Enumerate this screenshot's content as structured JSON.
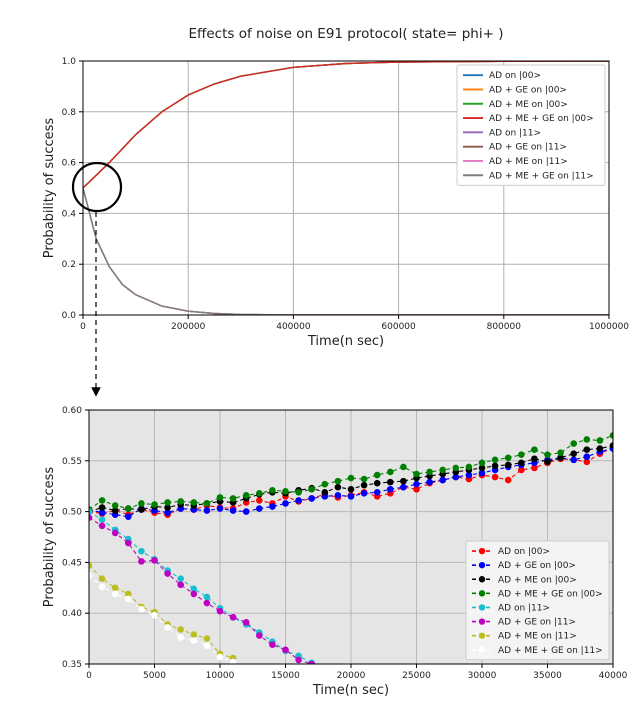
{
  "chart_data": [
    {
      "type": "line",
      "title": "Effects of noise on E91 protocol( state= phi+ )",
      "xlabel": "Time(n sec)",
      "ylabel": "Probability of success",
      "xlim": [
        0,
        1000000
      ],
      "ylim": [
        0.0,
        1.0
      ],
      "xticks": [
        "0",
        "200000",
        "400000",
        "600000",
        "800000",
        "1000000"
      ],
      "yticks": [
        "0.0",
        "0.2",
        "0.4",
        "0.6",
        "0.8",
        "1.0"
      ],
      "grid": true,
      "legend_position": "top-right",
      "series": [
        {
          "name": "AD on |00>",
          "color": "#1f77b4",
          "x": [
            0,
            50000,
            100000,
            150000,
            200000,
            250000,
            300000,
            400000,
            500000,
            600000,
            800000,
            1000000
          ],
          "y": [
            0.5,
            0.6,
            0.71,
            0.8,
            0.866,
            0.91,
            0.94,
            0.975,
            0.99,
            0.996,
            0.999,
            1.0
          ]
        },
        {
          "name": "AD + GE on |00>",
          "color": "#ff7f0e",
          "x": [
            0,
            50000,
            100000,
            150000,
            200000,
            250000,
            300000,
            400000,
            500000,
            600000,
            800000,
            1000000
          ],
          "y": [
            0.5,
            0.6,
            0.71,
            0.8,
            0.866,
            0.91,
            0.94,
            0.975,
            0.99,
            0.996,
            0.999,
            1.0
          ]
        },
        {
          "name": "AD + ME on |00>",
          "color": "#2ca02c",
          "x": [
            0,
            50000,
            100000,
            150000,
            200000,
            250000,
            300000,
            400000,
            500000,
            600000,
            800000,
            1000000
          ],
          "y": [
            0.5,
            0.6,
            0.71,
            0.8,
            0.866,
            0.91,
            0.94,
            0.975,
            0.99,
            0.996,
            0.999,
            1.0
          ]
        },
        {
          "name": "AD + ME + GE on |00>",
          "color": "#d62728",
          "x": [
            0,
            50000,
            100000,
            150000,
            200000,
            250000,
            300000,
            400000,
            500000,
            600000,
            800000,
            1000000
          ],
          "y": [
            0.5,
            0.6,
            0.71,
            0.8,
            0.866,
            0.91,
            0.94,
            0.975,
            0.99,
            0.996,
            0.999,
            1.0
          ]
        },
        {
          "name": "AD on |11>",
          "color": "#9467bd",
          "x": [
            0,
            25000,
            50000,
            75000,
            100000,
            150000,
            200000,
            250000,
            300000,
            400000,
            600000,
            1000000
          ],
          "y": [
            0.5,
            0.3,
            0.19,
            0.12,
            0.08,
            0.035,
            0.015,
            0.006,
            0.002,
            0.0,
            0.0,
            0.0
          ]
        },
        {
          "name": "AD + GE on |11>",
          "color": "#8c564b",
          "x": [
            0,
            25000,
            50000,
            75000,
            100000,
            150000,
            200000,
            250000,
            300000,
            400000,
            600000,
            1000000
          ],
          "y": [
            0.5,
            0.3,
            0.19,
            0.12,
            0.08,
            0.035,
            0.015,
            0.006,
            0.002,
            0.0,
            0.0,
            0.0
          ]
        },
        {
          "name": "AD + ME on |11>",
          "color": "#e377c2",
          "x": [
            0,
            25000,
            50000,
            75000,
            100000,
            150000,
            200000,
            250000,
            300000,
            400000,
            600000,
            1000000
          ],
          "y": [
            0.5,
            0.3,
            0.19,
            0.12,
            0.08,
            0.035,
            0.015,
            0.006,
            0.002,
            0.0,
            0.0,
            0.0
          ]
        },
        {
          "name": "AD + ME + GE on |11>",
          "color": "#7f7f7f",
          "x": [
            0,
            25000,
            50000,
            75000,
            100000,
            150000,
            200000,
            250000,
            300000,
            400000,
            600000,
            1000000
          ],
          "y": [
            0.5,
            0.3,
            0.19,
            0.12,
            0.08,
            0.035,
            0.015,
            0.006,
            0.002,
            0.0,
            0.0,
            0.0
          ]
        }
      ]
    },
    {
      "type": "line",
      "title": "",
      "xlabel": "Time(n sec)",
      "ylabel": "Probability of success",
      "xlim": [
        0,
        40000
      ],
      "ylim": [
        0.35,
        0.6
      ],
      "xticks": [
        "0",
        "5000",
        "10000",
        "15000",
        "20000",
        "25000",
        "30000",
        "35000",
        "40000"
      ],
      "yticks": [
        "0.35",
        "0.40",
        "0.45",
        "0.50",
        "0.55",
        "0.60"
      ],
      "grid": true,
      "background": "#e5e5e5",
      "legend_position": "bottom-right",
      "series": [
        {
          "name": "AD on |00>",
          "color": "#ff0000",
          "x": [
            0,
            1000,
            2000,
            3000,
            4000,
            5000,
            6000,
            7000,
            8000,
            9000,
            10000,
            11000,
            12000,
            13000,
            14000,
            15000,
            16000,
            17000,
            18000,
            19000,
            20000,
            21000,
            22000,
            23000,
            24000,
            25000,
            26000,
            27000,
            28000,
            29000,
            30000,
            31000,
            32000,
            33000,
            34000,
            35000,
            36000,
            37000,
            38000,
            39000,
            40000
          ],
          "y": [
            0.5,
            0.498,
            0.501,
            0.497,
            0.502,
            0.499,
            0.497,
            0.503,
            0.502,
            0.506,
            0.504,
            0.503,
            0.509,
            0.511,
            0.508,
            0.515,
            0.51,
            0.513,
            0.517,
            0.514,
            0.516,
            0.519,
            0.515,
            0.518,
            0.524,
            0.522,
            0.528,
            0.531,
            0.534,
            0.532,
            0.536,
            0.534,
            0.531,
            0.541,
            0.543,
            0.548,
            0.552,
            0.551,
            0.549,
            0.557,
            0.563
          ]
        },
        {
          "name": "AD + GE on |00>",
          "color": "#0000ff",
          "x": [
            0,
            1000,
            2000,
            3000,
            4000,
            5000,
            6000,
            7000,
            8000,
            9000,
            10000,
            11000,
            12000,
            13000,
            14000,
            15000,
            16000,
            17000,
            18000,
            19000,
            20000,
            21000,
            22000,
            23000,
            24000,
            25000,
            26000,
            27000,
            28000,
            29000,
            30000,
            31000,
            32000,
            33000,
            34000,
            35000,
            36000,
            37000,
            38000,
            39000,
            40000
          ],
          "y": [
            0.502,
            0.499,
            0.497,
            0.495,
            0.503,
            0.501,
            0.499,
            0.503,
            0.502,
            0.501,
            0.503,
            0.501,
            0.5,
            0.503,
            0.505,
            0.508,
            0.511,
            0.513,
            0.515,
            0.516,
            0.515,
            0.518,
            0.519,
            0.522,
            0.524,
            0.527,
            0.529,
            0.531,
            0.534,
            0.536,
            0.538,
            0.541,
            0.544,
            0.546,
            0.548,
            0.551,
            0.553,
            0.551,
            0.554,
            0.559,
            0.562
          ]
        },
        {
          "name": "AD + ME on |00>",
          "color": "#000000",
          "x": [
            0,
            1000,
            2000,
            3000,
            4000,
            5000,
            6000,
            7000,
            8000,
            9000,
            10000,
            11000,
            12000,
            13000,
            14000,
            15000,
            16000,
            17000,
            18000,
            19000,
            20000,
            21000,
            22000,
            23000,
            24000,
            25000,
            26000,
            27000,
            28000,
            29000,
            30000,
            31000,
            32000,
            33000,
            34000,
            35000,
            36000,
            37000,
            38000,
            39000,
            40000
          ],
          "y": [
            0.5,
            0.504,
            0.501,
            0.503,
            0.502,
            0.505,
            0.504,
            0.507,
            0.506,
            0.508,
            0.51,
            0.509,
            0.513,
            0.517,
            0.519,
            0.518,
            0.521,
            0.523,
            0.519,
            0.524,
            0.522,
            0.526,
            0.528,
            0.529,
            0.53,
            0.533,
            0.535,
            0.537,
            0.539,
            0.541,
            0.543,
            0.545,
            0.546,
            0.548,
            0.552,
            0.549,
            0.553,
            0.557,
            0.561,
            0.562,
            0.565
          ]
        },
        {
          "name": "AD + ME + GE on |00>",
          "color": "#008000",
          "x": [
            0,
            1000,
            2000,
            3000,
            4000,
            5000,
            6000,
            7000,
            8000,
            9000,
            10000,
            11000,
            12000,
            13000,
            14000,
            15000,
            16000,
            17000,
            18000,
            19000,
            20000,
            21000,
            22000,
            23000,
            24000,
            25000,
            26000,
            27000,
            28000,
            29000,
            30000,
            31000,
            32000,
            33000,
            34000,
            35000,
            36000,
            37000,
            38000,
            39000,
            40000
          ],
          "y": [
            0.502,
            0.511,
            0.506,
            0.503,
            0.508,
            0.507,
            0.509,
            0.51,
            0.509,
            0.508,
            0.514,
            0.513,
            0.516,
            0.518,
            0.521,
            0.52,
            0.519,
            0.522,
            0.527,
            0.53,
            0.533,
            0.532,
            0.536,
            0.539,
            0.544,
            0.537,
            0.539,
            0.541,
            0.543,
            0.544,
            0.548,
            0.551,
            0.553,
            0.556,
            0.561,
            0.556,
            0.558,
            0.567,
            0.571,
            0.57,
            0.575
          ]
        },
        {
          "name": "AD on |11>",
          "color": "#17becf",
          "x": [
            0,
            1000,
            2000,
            3000,
            4000,
            5000,
            6000,
            7000,
            8000,
            9000,
            10000,
            11000,
            12000,
            13000,
            14000,
            15000,
            16000,
            17000
          ],
          "y": [
            0.5,
            0.492,
            0.482,
            0.473,
            0.461,
            0.453,
            0.442,
            0.434,
            0.424,
            0.416,
            0.405,
            0.396,
            0.389,
            0.381,
            0.372,
            0.363,
            0.358,
            0.351
          ]
        },
        {
          "name": "AD + GE on |11>",
          "color": "#c000c0",
          "x": [
            0,
            1000,
            2000,
            3000,
            4000,
            5000,
            6000,
            7000,
            8000,
            9000,
            10000,
            11000,
            12000,
            13000,
            14000,
            15000,
            16000,
            17000
          ],
          "y": [
            0.494,
            0.486,
            0.479,
            0.469,
            0.451,
            0.452,
            0.439,
            0.428,
            0.419,
            0.41,
            0.402,
            0.396,
            0.391,
            0.378,
            0.369,
            0.364,
            0.354,
            0.35
          ]
        },
        {
          "name": "AD + ME on |11>",
          "color": "#bcbd22",
          "x": [
            0,
            1000,
            2000,
            3000,
            4000,
            5000,
            6000,
            7000,
            8000,
            9000,
            10000,
            11000
          ],
          "y": [
            0.447,
            0.434,
            0.425,
            0.419,
            0.406,
            0.401,
            0.389,
            0.384,
            0.379,
            0.375,
            0.36,
            0.356
          ]
        },
        {
          "name": "AD + ME + GE on |11>",
          "color": "#ffffff",
          "x": [
            0,
            1000,
            2000,
            3000,
            4000,
            5000,
            6000,
            7000,
            8000,
            9000,
            10000,
            11000
          ],
          "y": [
            0.437,
            0.426,
            0.419,
            0.414,
            0.404,
            0.398,
            0.386,
            0.376,
            0.373,
            0.368,
            0.357,
            0.352
          ]
        }
      ]
    }
  ]
}
